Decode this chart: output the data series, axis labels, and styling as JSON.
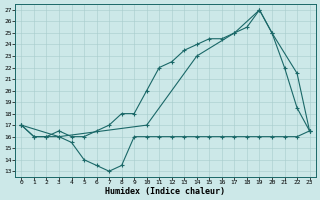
{
  "title": "",
  "xlabel": "Humidex (Indice chaleur)",
  "ylabel": "",
  "bg_color": "#cce8e8",
  "line_color": "#1a6868",
  "xlim": [
    -0.5,
    23.5
  ],
  "ylim": [
    12.5,
    27.5
  ],
  "yticks": [
    13,
    14,
    15,
    16,
    17,
    18,
    19,
    20,
    21,
    22,
    23,
    24,
    25,
    26,
    27
  ],
  "xticks": [
    0,
    1,
    2,
    3,
    4,
    5,
    6,
    7,
    8,
    9,
    10,
    11,
    12,
    13,
    14,
    15,
    16,
    17,
    18,
    19,
    20,
    21,
    22,
    23
  ],
  "line1_x": [
    0,
    1,
    2,
    3,
    4,
    5,
    6,
    7,
    8,
    9,
    10,
    11,
    12,
    13,
    14,
    15,
    16,
    17,
    18,
    19,
    20,
    21,
    22,
    23
  ],
  "line1_y": [
    17,
    16,
    16,
    16,
    15.5,
    14,
    13.5,
    13,
    13.5,
    16,
    16,
    16,
    16,
    16,
    16,
    16,
    16,
    16,
    16,
    16,
    16,
    16,
    16,
    16.5
  ],
  "line2_x": [
    0,
    1,
    2,
    3,
    4,
    5,
    6,
    7,
    8,
    9,
    10,
    11,
    12,
    13,
    14,
    15,
    16,
    17,
    18,
    19,
    20,
    21,
    22,
    23
  ],
  "line2_y": [
    17,
    16,
    16,
    16.5,
    16,
    16,
    16.5,
    17,
    18,
    18,
    20,
    22,
    22.5,
    23.5,
    24,
    24.5,
    24.5,
    25,
    25.5,
    27,
    25,
    22,
    18.5,
    16.5
  ],
  "line3_x": [
    0,
    3,
    10,
    14,
    17,
    19,
    20,
    22,
    23
  ],
  "line3_y": [
    17,
    16,
    17,
    23,
    25,
    27,
    25,
    21.5,
    16.5
  ],
  "ylabel_fontsize": 5,
  "xlabel_fontsize": 6,
  "tick_fontsize": 4.5,
  "linewidth": 0.8,
  "markersize": 2.5
}
